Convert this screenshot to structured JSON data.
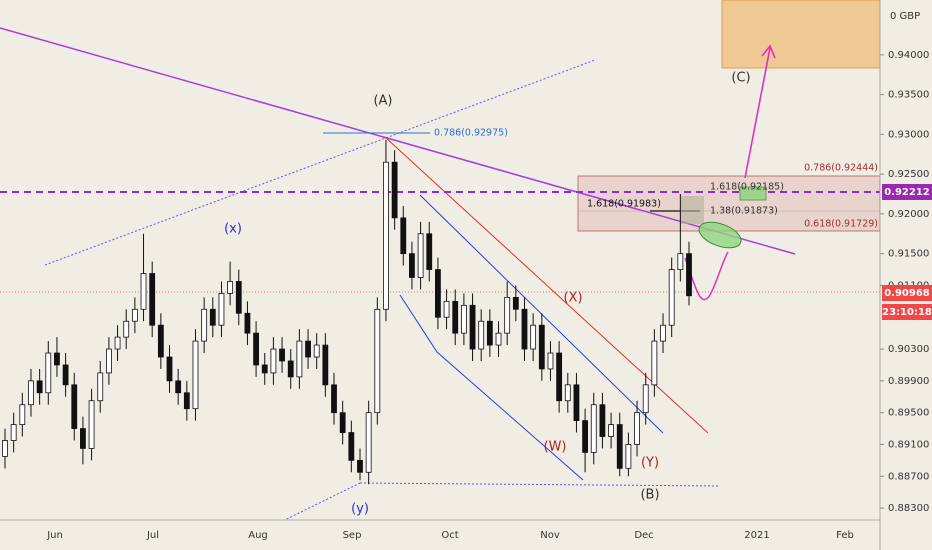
{
  "chart_data": {
    "type": "candlestick",
    "ylim": [
      0.8815,
      0.9469
    ],
    "yticks": [
      {
        "value": 0.94,
        "label": "0.94000"
      },
      {
        "value": 0.935,
        "label": "0.93500"
      },
      {
        "value": 0.93,
        "label": "0.93000"
      },
      {
        "value": 0.925,
        "label": "0.92500"
      },
      {
        "value": 0.92,
        "label": "0.92000"
      },
      {
        "value": 0.915,
        "label": "0.91500"
      },
      {
        "value": 0.911,
        "label": "0.91100"
      },
      {
        "value": 0.903,
        "label": "0.90300"
      },
      {
        "value": 0.899,
        "label": "0.89900"
      },
      {
        "value": 0.895,
        "label": "0.89500"
      },
      {
        "value": 0.891,
        "label": "0.89100"
      },
      {
        "value": 0.887,
        "label": "0.88700"
      },
      {
        "value": 0.883,
        "label": "0.88300"
      }
    ],
    "currency_label": "0 GBP",
    "x_labels": [
      "Jun",
      "Jul",
      "Aug",
      "Sep",
      "Oct",
      "Nov",
      "Dec",
      "2021",
      "Feb"
    ],
    "up_color": "#ffffff",
    "down_color": "#111111",
    "series": {
      "open": [
        0.8895,
        0.8915,
        0.8935,
        0.896,
        0.899,
        0.8975,
        0.9025,
        0.901,
        0.8985,
        0.893,
        0.8905,
        0.8965,
        0.9,
        0.903,
        0.9045,
        0.9065,
        0.908,
        0.9125,
        0.906,
        0.902,
        0.899,
        0.8975,
        0.8955,
        0.904,
        0.908,
        0.906,
        0.91,
        0.9115,
        0.9075,
        0.905,
        0.901,
        0.9,
        0.903,
        0.9015,
        0.8995,
        0.904,
        0.902,
        0.9035,
        0.8985,
        0.895,
        0.8925,
        0.889,
        0.8875,
        0.895,
        0.908,
        0.9265,
        0.9195,
        0.915,
        0.912,
        0.9175,
        0.913,
        0.907,
        0.909,
        0.905,
        0.9085,
        0.903,
        0.9065,
        0.9035,
        0.905,
        0.9095,
        0.908,
        0.903,
        0.906,
        0.9005,
        0.9025,
        0.8965,
        0.8985,
        0.894,
        0.89,
        0.896,
        0.892,
        0.8935,
        0.888,
        0.891,
        0.895,
        0.8985,
        0.904,
        0.906,
        0.913,
        0.915
      ],
      "high": [
        0.893,
        0.895,
        0.8975,
        0.9005,
        0.9005,
        0.904,
        0.9045,
        0.9025,
        0.9,
        0.8945,
        0.898,
        0.9015,
        0.9045,
        0.906,
        0.908,
        0.9095,
        0.9175,
        0.914,
        0.9075,
        0.9035,
        0.9005,
        0.899,
        0.9055,
        0.9095,
        0.9095,
        0.9115,
        0.914,
        0.913,
        0.909,
        0.9065,
        0.9025,
        0.9045,
        0.9045,
        0.903,
        0.9055,
        0.9055,
        0.905,
        0.905,
        0.9,
        0.8965,
        0.894,
        0.8905,
        0.8965,
        0.9095,
        0.9293,
        0.928,
        0.921,
        0.9165,
        0.919,
        0.919,
        0.9145,
        0.9105,
        0.9105,
        0.91,
        0.91,
        0.908,
        0.908,
        0.9065,
        0.9115,
        0.911,
        0.9095,
        0.9075,
        0.9075,
        0.904,
        0.904,
        0.9,
        0.9,
        0.8955,
        0.8975,
        0.8975,
        0.895,
        0.895,
        0.8925,
        0.8965,
        0.9,
        0.9055,
        0.9075,
        0.9145,
        0.9225,
        0.9165
      ],
      "low": [
        0.888,
        0.89,
        0.892,
        0.8945,
        0.896,
        0.896,
        0.8995,
        0.897,
        0.8915,
        0.8885,
        0.889,
        0.895,
        0.8985,
        0.9015,
        0.903,
        0.905,
        0.9065,
        0.9045,
        0.9005,
        0.8975,
        0.896,
        0.894,
        0.894,
        0.9025,
        0.9045,
        0.9045,
        0.9085,
        0.906,
        0.9035,
        0.8995,
        0.8985,
        0.8985,
        0.9,
        0.898,
        0.898,
        0.9005,
        0.9005,
        0.897,
        0.8935,
        0.891,
        0.8875,
        0.8865,
        0.886,
        0.8935,
        0.9065,
        0.918,
        0.9135,
        0.9105,
        0.9105,
        0.9115,
        0.9055,
        0.9055,
        0.9035,
        0.9035,
        0.9015,
        0.9015,
        0.902,
        0.902,
        0.9035,
        0.9065,
        0.9015,
        0.9015,
        0.899,
        0.899,
        0.895,
        0.895,
        0.8925,
        0.8875,
        0.8885,
        0.8905,
        0.8905,
        0.887,
        0.887,
        0.8895,
        0.8935,
        0.897,
        0.9025,
        0.9045,
        0.9115,
        0.9085
      ],
      "close": [
        0.8915,
        0.8935,
        0.896,
        0.899,
        0.8975,
        0.9025,
        0.901,
        0.8985,
        0.893,
        0.8905,
        0.8965,
        0.9,
        0.903,
        0.9045,
        0.9065,
        0.908,
        0.9125,
        0.906,
        0.902,
        0.899,
        0.8975,
        0.8955,
        0.904,
        0.908,
        0.906,
        0.91,
        0.9115,
        0.9075,
        0.905,
        0.901,
        0.9,
        0.903,
        0.9015,
        0.8995,
        0.904,
        0.902,
        0.9035,
        0.8985,
        0.895,
        0.8925,
        0.889,
        0.8875,
        0.895,
        0.908,
        0.9265,
        0.9195,
        0.915,
        0.912,
        0.9175,
        0.913,
        0.907,
        0.909,
        0.905,
        0.9085,
        0.903,
        0.9065,
        0.9035,
        0.905,
        0.9095,
        0.908,
        0.903,
        0.906,
        0.9005,
        0.9025,
        0.8965,
        0.8985,
        0.894,
        0.89,
        0.896,
        0.892,
        0.8935,
        0.888,
        0.891,
        0.895,
        0.8985,
        0.904,
        0.906,
        0.913,
        0.915,
        0.9097
      ]
    },
    "annotations": {
      "A": "(A)",
      "x": "(x)",
      "y": "(y)",
      "X": "(X)",
      "W": "(W)",
      "Y": "(Y)",
      "B": "(B)",
      "C": "(C)",
      "fib1": "0.786(0.92975)",
      "fib2": "0.786(0.92444)",
      "fib3": "0.618(0.91729)",
      "fib4": "1.618(0.91983)",
      "fib5": "1.618(0.92185)",
      "fib6": "1.38(0.91873)"
    },
    "price_badges": {
      "level": "0.92212",
      "last": "0.90968",
      "countdown": "23:10:18"
    }
  }
}
